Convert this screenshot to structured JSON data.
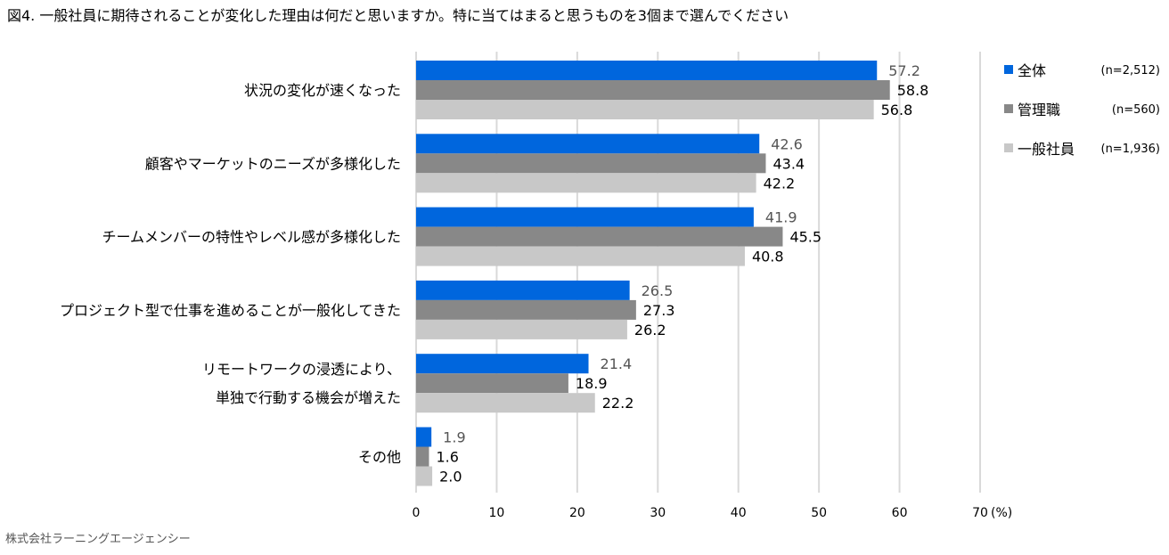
{
  "chart_data": {
    "type": "bar",
    "orientation": "horizontal",
    "title": "図4. 一般社員に期待されることが変化した理由は何だと思いますか。特に当てはまると思うものを3個まで選んでください",
    "categories": [
      [
        "状況の変化が速くなった"
      ],
      [
        "顧客やマーケットのニーズが多様化した"
      ],
      [
        "チームメンバーの特性やレベル感が多様化した"
      ],
      [
        "プロジェクト型で仕事を進めることが一般化してきた"
      ],
      [
        "リモートワークの浸透により、",
        "単独で行動する機会が増えた"
      ],
      [
        "その他"
      ]
    ],
    "series": [
      {
        "name": "全体",
        "n": "(n=2,512)",
        "color": "#0066dd",
        "label_color": "#555555",
        "values": [
          57.2,
          42.6,
          41.9,
          26.5,
          21.4,
          1.9
        ]
      },
      {
        "name": "管理職",
        "n": "(n=560)",
        "color": "#888888",
        "label_color": "#000000",
        "values": [
          58.8,
          43.4,
          45.5,
          27.3,
          18.9,
          1.6
        ]
      },
      {
        "name": "一般社員",
        "n": "(n=1,936)",
        "color": "#c8c8c8",
        "label_color": "#000000",
        "values": [
          56.8,
          42.2,
          40.8,
          26.2,
          22.2,
          2.0
        ]
      }
    ],
    "xlim": [
      0,
      70
    ],
    "xticks": [
      "0",
      "10",
      "20",
      "30",
      "40",
      "50",
      "60",
      "70"
    ],
    "xunit": "(%)",
    "grid": true,
    "legend": "right"
  },
  "source": "株式会社ラーニングエージェンシー"
}
